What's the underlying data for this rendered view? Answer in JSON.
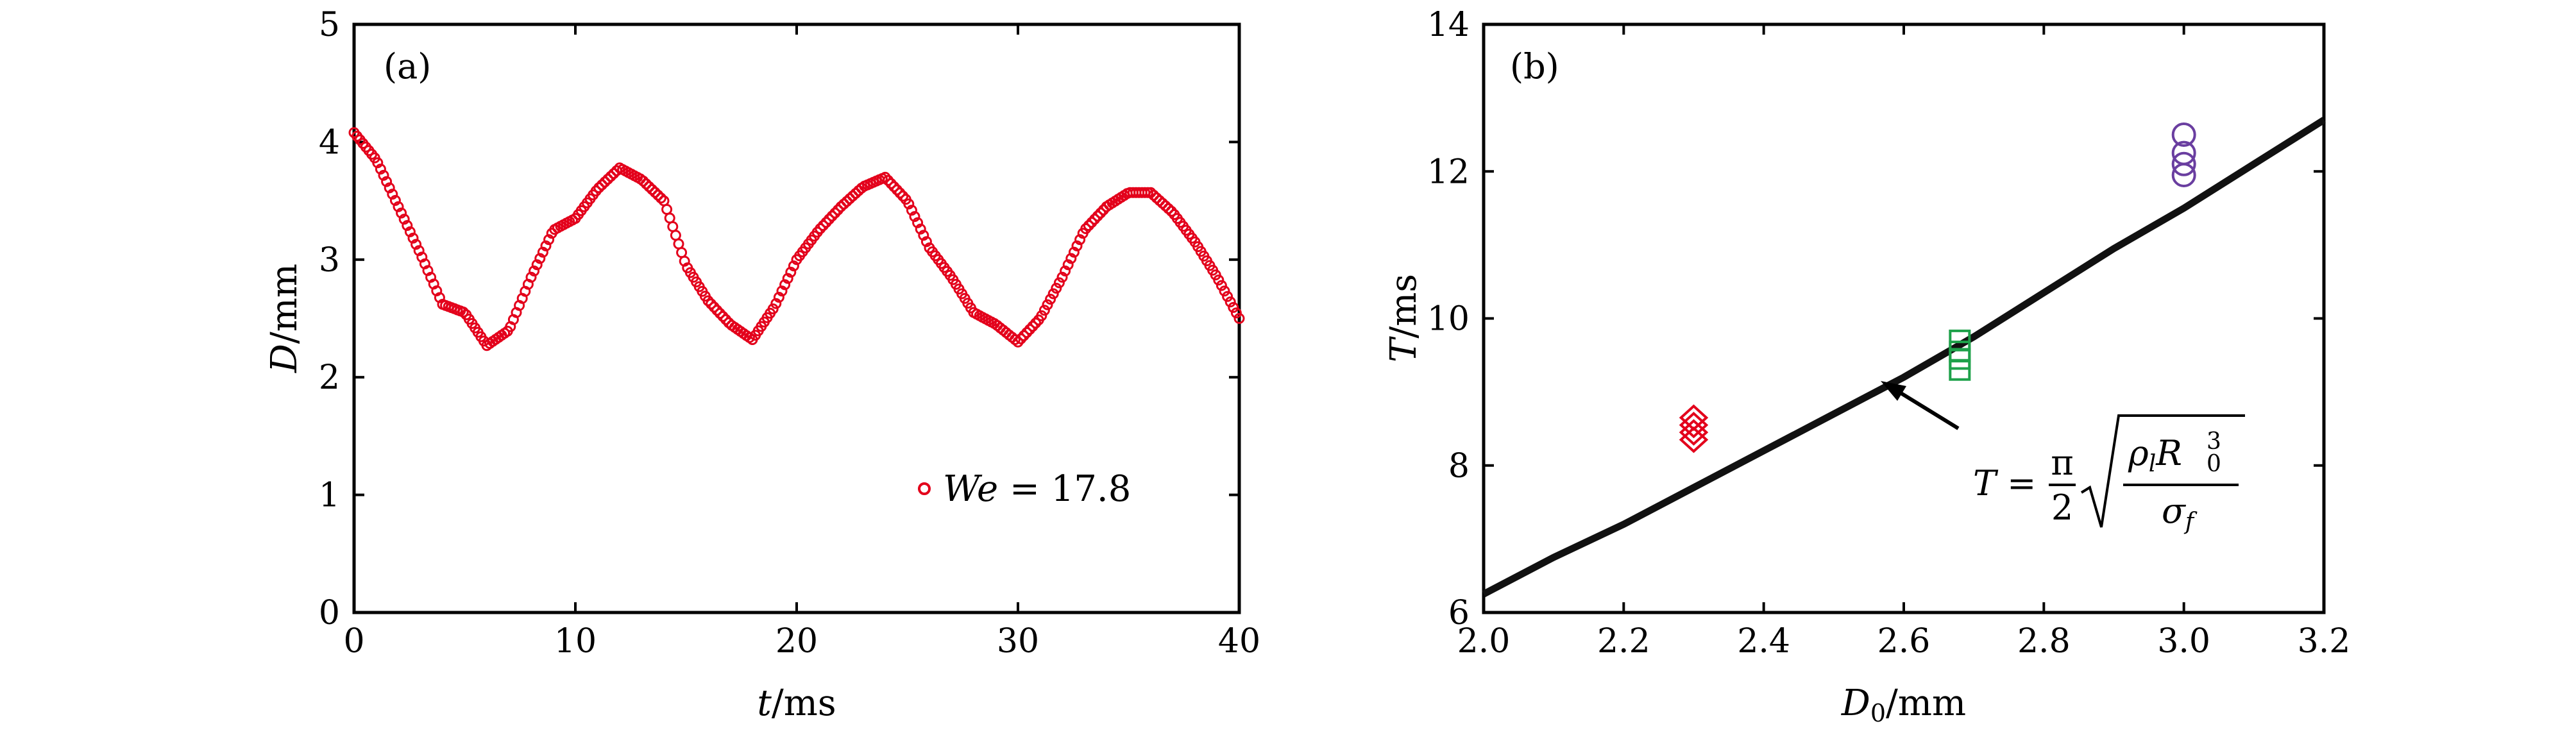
{
  "chart_data": [
    {
      "type": "scatter",
      "panel_label": "(a)",
      "xlabel_var": "t",
      "xlabel_unit": "/ms",
      "ylabel_var": "D",
      "ylabel_unit": "/mm",
      "xlim": [
        0,
        40
      ],
      "ylim": [
        0,
        5
      ],
      "xticks": [
        "0",
        "10",
        "20",
        "30",
        "40"
      ],
      "yticks": [
        "0",
        "1",
        "2",
        "3",
        "4",
        "5"
      ],
      "grid": false,
      "legend_position": "bottom-right",
      "legend": {
        "var": "We",
        "text": " = 17.8"
      },
      "series": [
        {
          "name": "We = 17.8",
          "color": "#e3001b",
          "marker": "open-circle",
          "x": [
            0,
            1,
            2,
            3,
            4,
            5,
            6,
            7,
            8,
            9,
            10,
            11,
            12,
            13,
            14,
            15,
            16,
            17,
            18,
            19,
            20,
            21,
            22,
            23,
            24,
            25,
            26,
            27,
            28,
            29,
            30,
            31,
            32,
            33,
            34,
            35,
            36,
            37,
            38,
            39,
            40
          ],
          "y": [
            4.08,
            3.85,
            3.45,
            3.05,
            2.62,
            2.55,
            2.27,
            2.4,
            2.85,
            3.25,
            3.35,
            3.6,
            3.78,
            3.68,
            3.5,
            2.95,
            2.65,
            2.45,
            2.32,
            2.6,
            3.0,
            3.25,
            3.45,
            3.62,
            3.7,
            3.5,
            3.1,
            2.85,
            2.55,
            2.45,
            2.3,
            2.5,
            2.85,
            3.25,
            3.45,
            3.57,
            3.57,
            3.4,
            3.15,
            2.85,
            2.5
          ]
        }
      ]
    },
    {
      "type": "scatter",
      "panel_label": "(b)",
      "xlabel_var": "D",
      "xlabel_sub": "0",
      "xlabel_unit": "/mm",
      "ylabel_var": "T",
      "ylabel_unit": "/ms",
      "xlim": [
        2.0,
        3.2
      ],
      "ylim": [
        6,
        14
      ],
      "xticks": [
        "2.0",
        "2.2",
        "2.4",
        "2.6",
        "2.8",
        "3.0",
        "3.2"
      ],
      "yticks": [
        "6",
        "8",
        "10",
        "12",
        "14"
      ],
      "grid": false,
      "series": [
        {
          "marker": "open-diamond",
          "color": "#e3001b",
          "x": [
            2.3,
            2.3,
            2.3,
            2.3
          ],
          "y": [
            8.35,
            8.45,
            8.55,
            8.65
          ]
        },
        {
          "marker": "open-square",
          "color": "#1ea14a",
          "x": [
            2.68,
            2.68,
            2.68,
            2.68
          ],
          "y": [
            9.3,
            9.45,
            9.55,
            9.7
          ]
        },
        {
          "marker": "open-circle",
          "color": "#6a3ea0",
          "x": [
            3.0,
            3.0,
            3.0,
            3.0
          ],
          "y": [
            11.95,
            12.1,
            12.25,
            12.5
          ]
        }
      ],
      "curve": {
        "color": "#111111",
        "x": [
          2.0,
          2.1,
          2.2,
          2.3,
          2.4,
          2.5,
          2.6,
          2.7,
          2.8,
          2.9,
          3.0,
          3.1,
          3.2
        ],
        "y": [
          6.25,
          6.75,
          7.2,
          7.7,
          8.2,
          8.7,
          9.2,
          9.75,
          10.35,
          10.95,
          11.5,
          12.1,
          12.7
        ]
      },
      "annotation": {
        "formula_lhs": "T =",
        "formula_num": "π",
        "formula_den": "2",
        "rad_rho": "ρ",
        "rad_rho_sub": "l",
        "rad_R": "R",
        "rad_R_sub": "0",
        "rad_R_sup": "3",
        "rad_sigma": "σ",
        "rad_sigma_sub": "f"
      }
    }
  ]
}
